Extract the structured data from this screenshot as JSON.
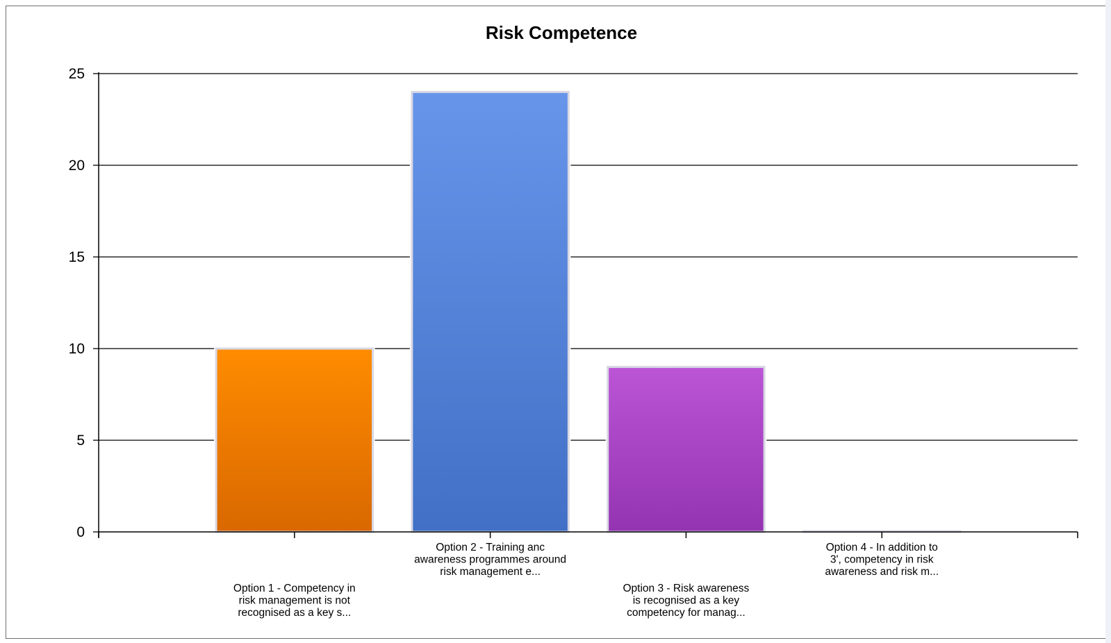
{
  "chart_data": {
    "type": "bar",
    "title": "Risk Competence",
    "xlabel": "",
    "ylabel": "",
    "ylim": [
      0,
      25
    ],
    "yticks": [
      0,
      5,
      10,
      15,
      20,
      25
    ],
    "grid": true,
    "legend": "none",
    "categories": [
      [
        "Option 1 - Competency in",
        "risk management is not",
        "recognised as a key s..."
      ],
      [
        "Option 2 - Training anc",
        "awareness programmes around",
        "risk management e..."
      ],
      [
        "Option 3 - Risk awareness",
        "is recognised as a key",
        "competency for manag..."
      ],
      [
        "Option 4 - In addition to",
        "3', competency in risk",
        "awareness and risk m..."
      ]
    ],
    "values": [
      10,
      24,
      9,
      0
    ],
    "colors": [
      [
        "#ff8c00",
        "#d96800"
      ],
      [
        "#6795ea",
        "#4170c6"
      ],
      [
        "#bb55d6",
        "#9434b1"
      ],
      [
        "#9aa7b8",
        "#9aa7b8"
      ]
    ]
  }
}
